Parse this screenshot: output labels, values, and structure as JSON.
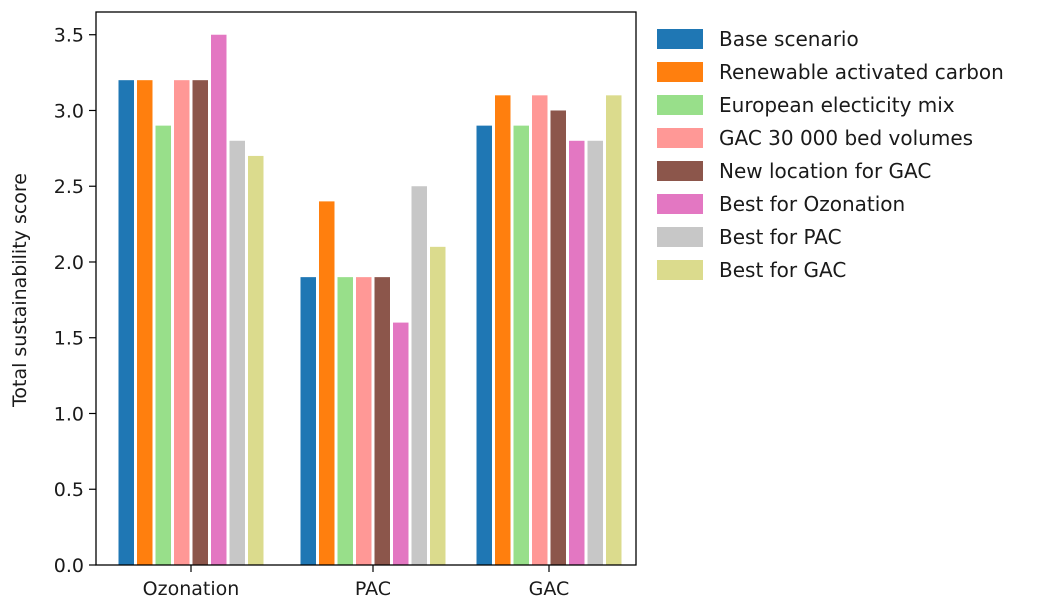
{
  "chart_data": {
    "type": "bar",
    "categories": [
      "Ozonation",
      "PAC",
      "GAC"
    ],
    "ylabel": "Total sustainability score",
    "xlabel": "",
    "ylim": [
      0,
      3.65
    ],
    "yticks": [
      "0.0",
      "0.5",
      "1.0",
      "1.5",
      "2.0",
      "2.5",
      "3.0",
      "3.5"
    ],
    "legend_position": "outside-right",
    "series": [
      {
        "name": "Base scenario",
        "color": "#1f77b4",
        "values": [
          3.2,
          1.9,
          2.9
        ]
      },
      {
        "name": "Renewable activated carbon",
        "color": "#ff7f0e",
        "values": [
          3.2,
          2.4,
          3.1
        ]
      },
      {
        "name": "European electicity mix",
        "color": "#98df8a",
        "values": [
          2.9,
          1.9,
          2.9
        ]
      },
      {
        "name": "GAC 30 000 bed volumes",
        "color": "#ff9896",
        "values": [
          3.2,
          1.9,
          3.1
        ]
      },
      {
        "name": "New location for GAC",
        "color": "#8c564b",
        "values": [
          3.2,
          1.9,
          3.0
        ]
      },
      {
        "name": "Best for Ozonation",
        "color": "#e377c2",
        "values": [
          3.5,
          1.6,
          2.8
        ]
      },
      {
        "name": "Best for PAC",
        "color": "#c7c7c7",
        "values": [
          2.8,
          2.5,
          2.8
        ]
      },
      {
        "name": "Best for GAC",
        "color": "#dbdb8d",
        "values": [
          2.7,
          2.1,
          3.1
        ]
      }
    ]
  }
}
